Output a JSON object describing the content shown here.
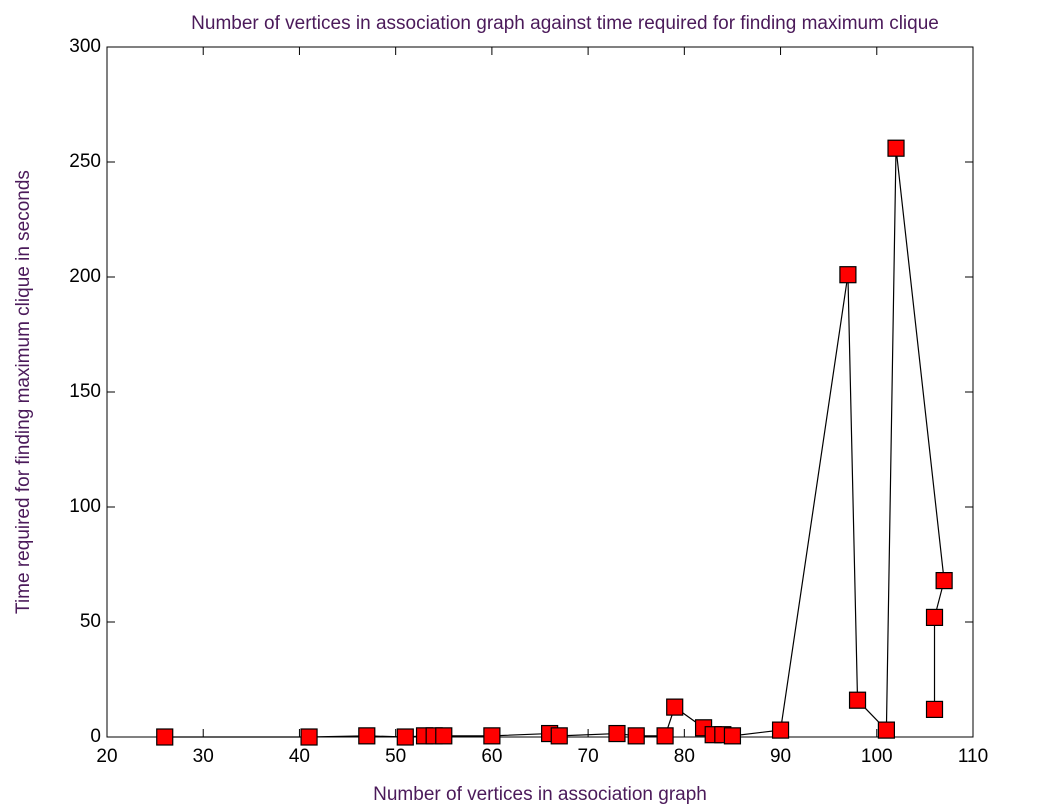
{
  "chart_data": {
    "type": "line",
    "title": "Number of vertices in association graph against time required for finding maximum clique",
    "xlabel": "Number of vertices in association graph",
    "ylabel": "Time required for finding maximum clique in seconds",
    "x": [
      26,
      41,
      47,
      51,
      53,
      54,
      55,
      60,
      66,
      67,
      73,
      75,
      78,
      79,
      82,
      83,
      84,
      85,
      90,
      97,
      98,
      101,
      102,
      107,
      106,
      106
    ],
    "series": [
      {
        "name": "time",
        "color": "#ff0000",
        "values": [
          0,
          0,
          0.5,
          0,
          0.5,
          0.5,
          0.5,
          0.5,
          1.5,
          0.5,
          1.5,
          0.5,
          0.5,
          13,
          4,
          1,
          1,
          0.5,
          3,
          201,
          16,
          3,
          256,
          68,
          52,
          12
        ]
      }
    ],
    "line_color": "#000000",
    "xlim": [
      20,
      110
    ],
    "xticks": [
      20,
      30,
      40,
      50,
      60,
      70,
      80,
      90,
      100,
      110
    ],
    "ylim": [
      0,
      300
    ],
    "yticks": [
      0,
      50,
      100,
      150,
      200,
      250,
      300
    ]
  }
}
